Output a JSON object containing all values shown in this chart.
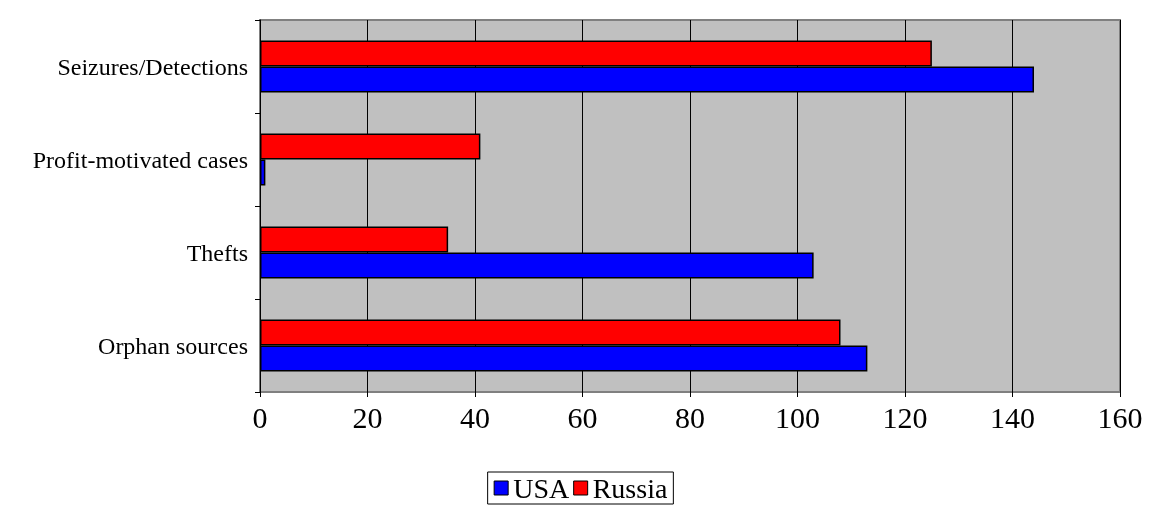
{
  "chart_data": {
    "type": "bar",
    "orientation": "horizontal",
    "categories": [
      "Seizures/Detections",
      "Profit-motivated cases",
      "Thefts",
      "Orphan sources"
    ],
    "series": [
      {
        "name": "USA",
        "color": "#0000ff",
        "values": [
          144,
          1,
          103,
          113
        ]
      },
      {
        "name": "Russia",
        "color": "#ff0000",
        "values": [
          125,
          41,
          35,
          108
        ]
      }
    ],
    "xlim": [
      0,
      160
    ],
    "xticks": [
      0,
      20,
      40,
      60,
      80,
      100,
      120,
      140,
      160
    ],
    "grid": "x",
    "legend": "bottom"
  }
}
